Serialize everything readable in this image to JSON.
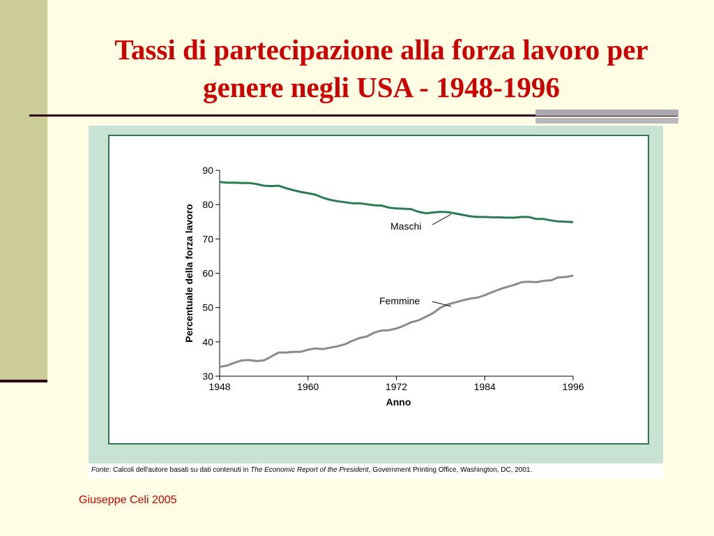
{
  "slide": {
    "title_line1": "Tassi di partecipazione alla forza lavoro per",
    "title_line2": "genere negli USA - 1948-1996",
    "footer": "Giuseppe Celi  2005",
    "title_color": "#cc0000",
    "background_color": "#fffde3",
    "accent_color": "#cccc99"
  },
  "source": {
    "prefix": "Fonte",
    "text1": ": Calcoli dell'autore basati su dati contenuti in ",
    "publication": "The Economic Report of the President",
    "text2": ", Government Printing Office, Washington, DC, 2001."
  },
  "chart_data": {
    "type": "line",
    "title": "",
    "xlabel": "Anno",
    "ylabel": "Percentuale della forza lavoro",
    "xlim": [
      1948,
      1996
    ],
    "ylim": [
      30,
      90
    ],
    "xticks": [
      1948,
      1960,
      1972,
      1984,
      1996
    ],
    "yticks": [
      30,
      40,
      50,
      60,
      70,
      80,
      90
    ],
    "grid": false,
    "legend": "none",
    "x": [
      1948,
      1949,
      1950,
      1951,
      1952,
      1953,
      1954,
      1955,
      1956,
      1957,
      1958,
      1959,
      1960,
      1961,
      1962,
      1963,
      1964,
      1965,
      1966,
      1967,
      1968,
      1969,
      1970,
      1971,
      1972,
      1973,
      1974,
      1975,
      1976,
      1977,
      1978,
      1979,
      1980,
      1981,
      1982,
      1983,
      1984,
      1985,
      1986,
      1987,
      1988,
      1989,
      1990,
      1991,
      1992,
      1993,
      1994,
      1995,
      1996
    ],
    "series": [
      {
        "name": "Maschi",
        "color": "#2a7a52",
        "values": [
          86.6,
          86.4,
          86.4,
          86.3,
          86.3,
          86.0,
          85.5,
          85.4,
          85.5,
          84.8,
          84.2,
          83.7,
          83.3,
          82.9,
          82.0,
          81.4,
          81.0,
          80.7,
          80.4,
          80.4,
          80.1,
          79.8,
          79.7,
          79.1,
          78.9,
          78.8,
          78.7,
          77.9,
          77.5,
          77.7,
          77.9,
          77.8,
          77.4,
          77.0,
          76.6,
          76.4,
          76.4,
          76.3,
          76.3,
          76.2,
          76.2,
          76.4,
          76.4,
          75.8,
          75.8,
          75.4,
          75.1,
          75.0,
          74.9
        ]
      },
      {
        "name": "Femmine",
        "color": "#8a8a8a",
        "values": [
          32.7,
          33.1,
          33.9,
          34.6,
          34.7,
          34.4,
          34.6,
          35.7,
          36.9,
          36.9,
          37.1,
          37.1,
          37.7,
          38.1,
          37.9,
          38.3,
          38.7,
          39.3,
          40.3,
          41.1,
          41.6,
          42.7,
          43.3,
          43.4,
          43.9,
          44.7,
          45.7,
          46.3,
          47.3,
          48.4,
          50.0,
          50.9,
          51.5,
          52.1,
          52.6,
          52.9,
          53.6,
          54.5,
          55.3,
          56.0,
          56.6,
          57.4,
          57.5,
          57.4,
          57.8,
          57.9,
          58.8,
          58.9,
          59.3
        ]
      }
    ]
  }
}
